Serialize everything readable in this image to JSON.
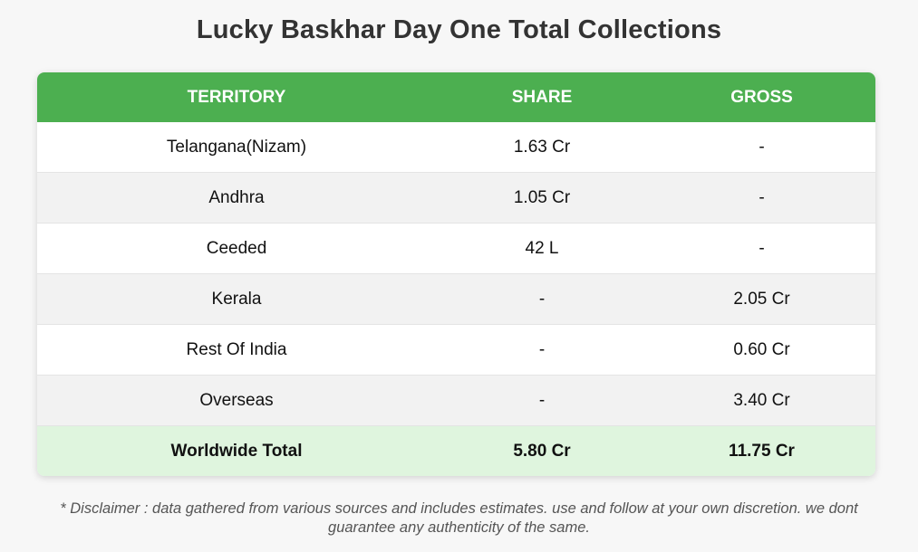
{
  "page": {
    "title": "Lucky Baskhar Day One Total Collections",
    "disclaimer": "* Disclaimer : data gathered from various sources and includes estimates. use and follow at your own discretion. we dont guarantee any authenticity of the same."
  },
  "table": {
    "headers": [
      "TERRITORY",
      "SHARE",
      "GROSS"
    ],
    "rows": [
      [
        "Telangana(Nizam)",
        "1.63 Cr",
        "-"
      ],
      [
        "Andhra",
        "1.05 Cr",
        "-"
      ],
      [
        "Ceeded",
        "42 L",
        "-"
      ],
      [
        "Kerala",
        "-",
        "2.05 Cr"
      ],
      [
        "Rest Of India",
        "-",
        "0.60 Cr"
      ],
      [
        "Overseas",
        "-",
        "3.40 Cr"
      ]
    ],
    "total": [
      "Worldwide Total",
      "5.80 Cr",
      "11.75 Cr"
    ]
  },
  "colors": {
    "header_bg": "#4caf50",
    "total_bg": "#dff5de",
    "stripe_bg": "#f2f2f2"
  }
}
